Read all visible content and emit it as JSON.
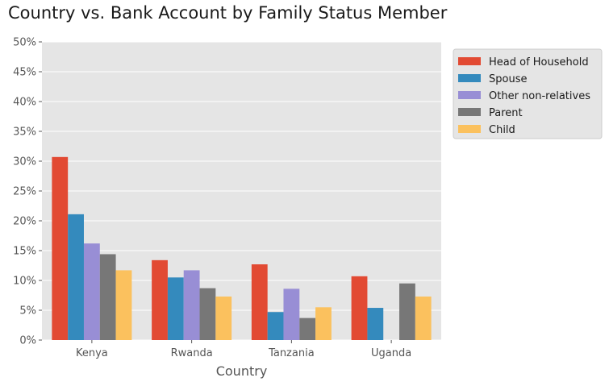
{
  "chart_data": {
    "type": "bar",
    "title": "Country vs. Bank Account by Family Status Member",
    "xlabel": "Country",
    "ylabel": "",
    "categories": [
      "Kenya",
      "Rwanda",
      "Tanzania",
      "Uganda"
    ],
    "ylim": [
      0,
      50
    ],
    "yticks": [
      "0%",
      "5%",
      "10%",
      "15%",
      "20%",
      "25%",
      "30%",
      "35%",
      "40%",
      "45%",
      "50%"
    ],
    "grid": true,
    "legend_position": "top-right-outside",
    "series": [
      {
        "name": "Head of Household",
        "color": "#E24A33",
        "values": [
          30.7,
          13.4,
          12.7,
          10.7
        ]
      },
      {
        "name": "Spouse",
        "color": "#348ABD",
        "values": [
          21.1,
          10.5,
          4.7,
          5.4
        ]
      },
      {
        "name": "Other non-relatives",
        "color": "#988ED5",
        "values": [
          16.2,
          11.7,
          8.6,
          0
        ]
      },
      {
        "name": "Parent",
        "color": "#777777",
        "values": [
          14.4,
          8.7,
          3.7,
          9.5
        ]
      },
      {
        "name": "Child",
        "color": "#FBC15E",
        "values": [
          11.7,
          7.3,
          5.5,
          7.3
        ]
      }
    ],
    "plot_background": "#E5E5E5"
  }
}
